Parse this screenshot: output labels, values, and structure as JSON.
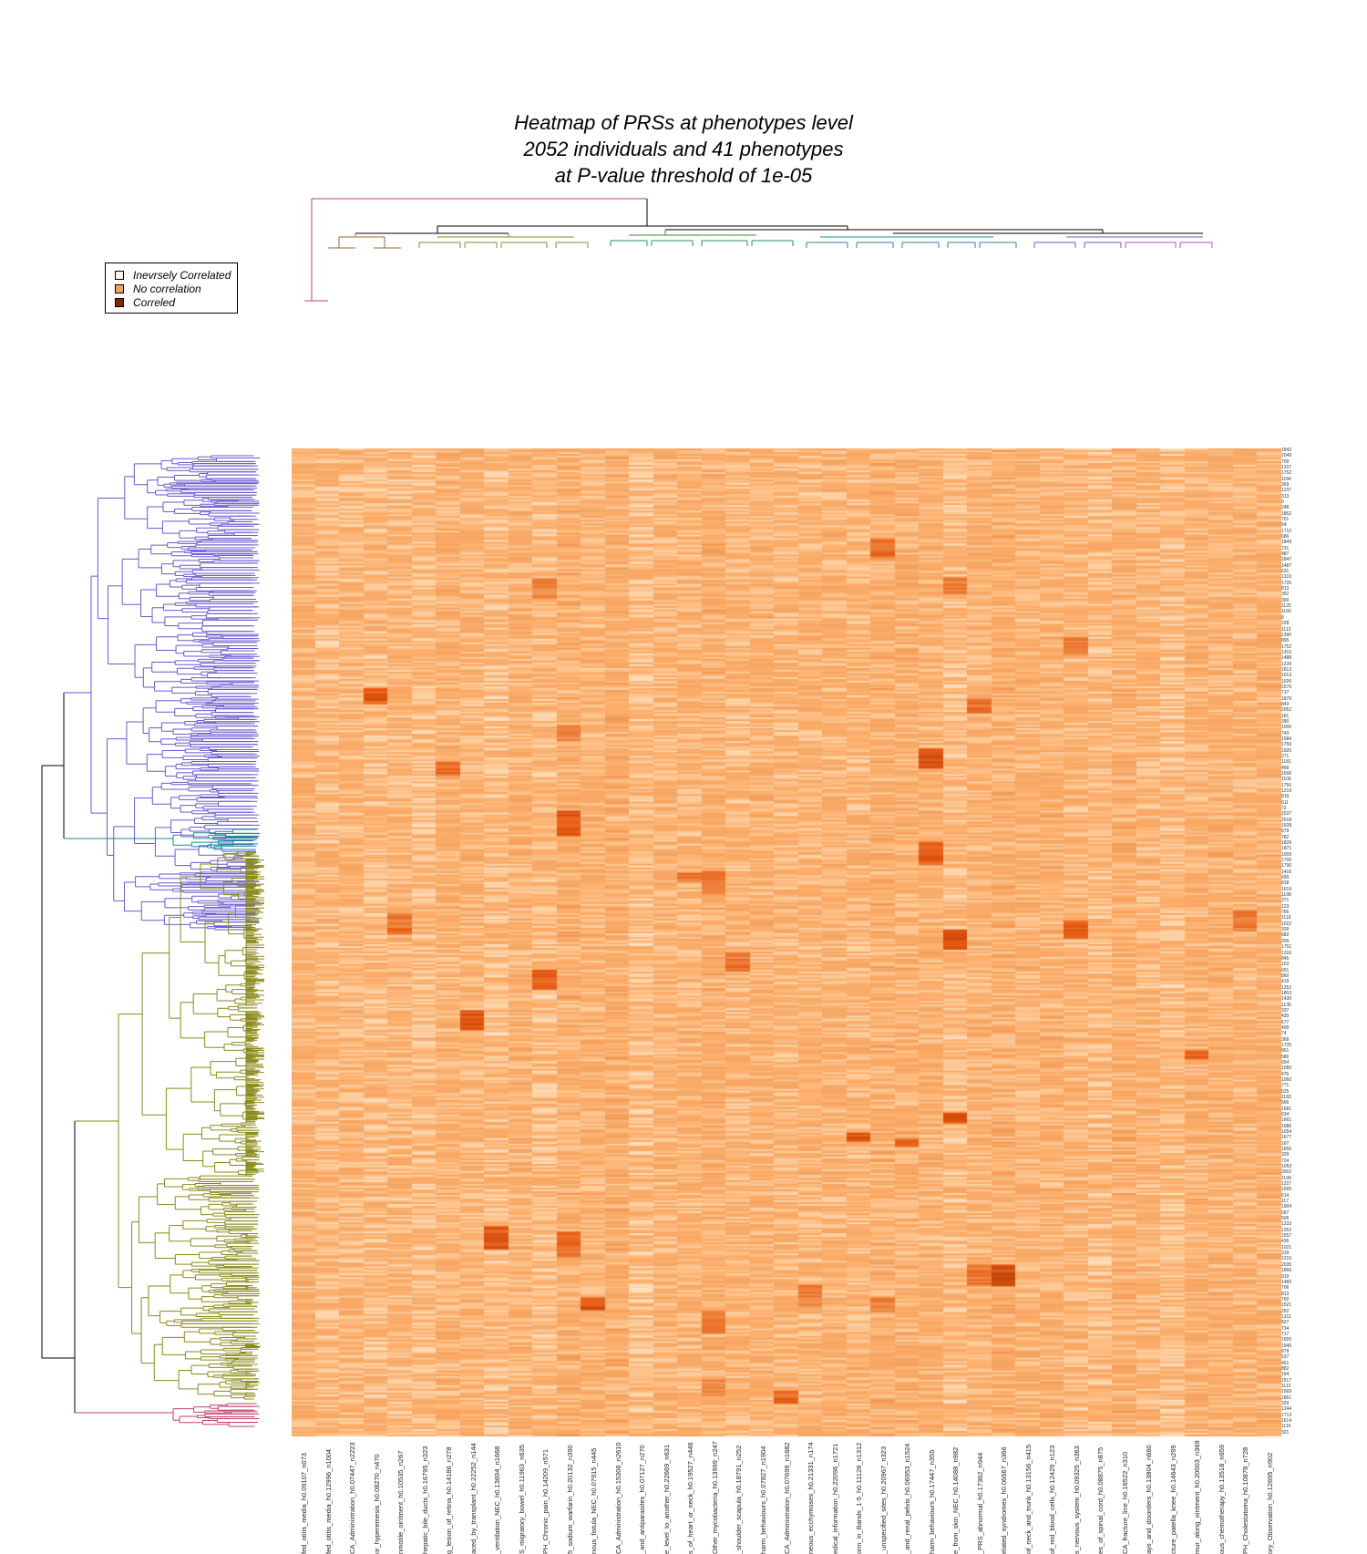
{
  "title": {
    "line1": "Heatmap of PRSs at phenotypes level",
    "line2": "2052 individuals and 41 phenotypes",
    "line3": "at P-value threshold of 1e-05"
  },
  "legend": [
    {
      "label": "Inevrsely Correlated",
      "color": "#fff5eb"
    },
    {
      "label": "No correlation",
      "color": "#f4a460"
    },
    {
      "label": "Correled",
      "color": "#7f2704"
    }
  ],
  "chart_data": {
    "type": "heatmap",
    "n_rows": 2052,
    "n_cols": 41,
    "color_scale": [
      "#fff5eb",
      "#fdd0a2",
      "#fdae6b",
      "#f4a460",
      "#e6550d",
      "#7f2704"
    ],
    "columns": [
      "fed_otitis_media_h0.09107_n073",
      "fed_otitis_media_h0.12996_n1004",
      "CA_Administration_h0.07447_n2223",
      "or_hyperemesis_h0.08270_n470",
      "nmotile_ointment_h0.10535_n267",
      "hepatic_bile_ducts_h0.16795_n323",
      "g_lesion_of_retina_h0.14186_n278",
      "aced_by_transplant_h0.22252_n144",
      "_ventilation_NEC_h0.13694_n1668",
      "S_migratory_bowel_h0.11963_n635",
      "PH_Chronic_pain_h0.14209_n571",
      "5_sodium_warfarin_h0.20132_n390",
      "nous_fistula_NEC_h0.07915_n445",
      "CA_Administration_h0.15306_n2610",
      "_and_antiparasites_h0.07127_n270",
      "e_level_to_another_h0.22669_n631",
      "s_of_heart_or_neck_h0.19527_n446",
      "Other_mycobacteria_h0.13999_n247",
      "_shoulder_scapula_h0.18791_n252",
      "harm_behaviours_h0.07827_n1904",
      "CA_Administration_h0.07699_n1682",
      "neous_ecchymoses_h0.21331_n174",
      "edical_information_h0.22096_n1721",
      "onn_in_Bands_1-5_h0.11128_n1312",
      "_unspecified_sites_h0.20967_n323",
      "_and_renal_pelvis_h0.06953_n1524",
      "harm_behaviours_h0.17447_n355",
      "e_from_skin_NEC_h0.14088_n982",
      "_PRS_abnormal_h0.17362_n944",
      "elated_syndromes_h0.06567_n366",
      "of_neck_and_trunk_h0.13156_n415",
      "of_red_blood_cells_h0.12429_n123",
      "s_nervous_system_h0.09325_n363",
      "es_of_spinal_cord_h0.08875_n875",
      "CA_fracture_line_h0.16522_n310",
      "ays_and_disorders_h0.13804_n660",
      "cture_patella_knee_h0.14643_n299",
      "mur_along_ointment_h0.20003_n369",
      "ous_chemotherapy_h0.13518_n659",
      "PH_Cholestatoma_h0.10878_n728",
      "ory_Observation_h0.12695_n902"
    ],
    "row_labels": [
      "1842",
      "2049",
      "709",
      "1207",
      "1752",
      "1184",
      "369",
      "1237",
      "313",
      "9",
      "248",
      "1862",
      "751",
      "54",
      "1712",
      "686",
      "1849",
      "731",
      "487",
      "1847",
      "1487",
      "631",
      "1310",
      "1726",
      "813",
      "352",
      "300",
      "1125",
      "1160",
      "8",
      "228",
      "1113",
      "1390",
      "895",
      "1752",
      "1316",
      "1488",
      "1239",
      "1813",
      "1013",
      "1026",
      "1576",
      "717",
      "1876",
      "843",
      "2052",
      "181",
      "390",
      "1005",
      "743",
      "1584",
      "1756",
      "1920",
      "271",
      "1181",
      "468",
      "1566",
      "1106",
      "1755",
      "1219",
      "819",
      "611",
      "72",
      "1537",
      "2018",
      "1528",
      "879",
      "782",
      "1839",
      "1871",
      "1009",
      "1700",
      "1790",
      "1416",
      "690",
      "818",
      "1619",
      "1198",
      "371",
      "123",
      "766",
      "1119",
      "1022",
      "339",
      "682",
      "209",
      "1751",
      "1316",
      "845",
      "153",
      "651",
      "860",
      "419",
      "1352",
      "1803",
      "1430",
      "1136",
      "337",
      "430",
      "677",
      "409",
      "74",
      "368",
      "1735",
      "861",
      "586",
      "654",
      "1089",
      "476",
      "1060",
      "771",
      "525",
      "1183",
      "566",
      "1681",
      "634",
      "1661",
      "1986",
      "1054",
      "1677",
      "167",
      "1656",
      "329",
      "724",
      "1053",
      "2002",
      "1199",
      "1227",
      "1565",
      "614",
      "117",
      "1904",
      "597",
      "506",
      "1233",
      "1352",
      "1557",
      "436",
      "1021",
      "319",
      "1215",
      "2035",
      "1866",
      "919",
      "1482",
      "706",
      "813",
      "792",
      "1521",
      "252",
      "1311",
      "827",
      "734",
      "717",
      "1555",
      "1940",
      "879",
      "537",
      "451",
      "882",
      "154",
      "1517",
      "1112",
      "1569",
      "1861",
      "329",
      "1244",
      "1713",
      "1614",
      "1116",
      "321"
    ]
  }
}
